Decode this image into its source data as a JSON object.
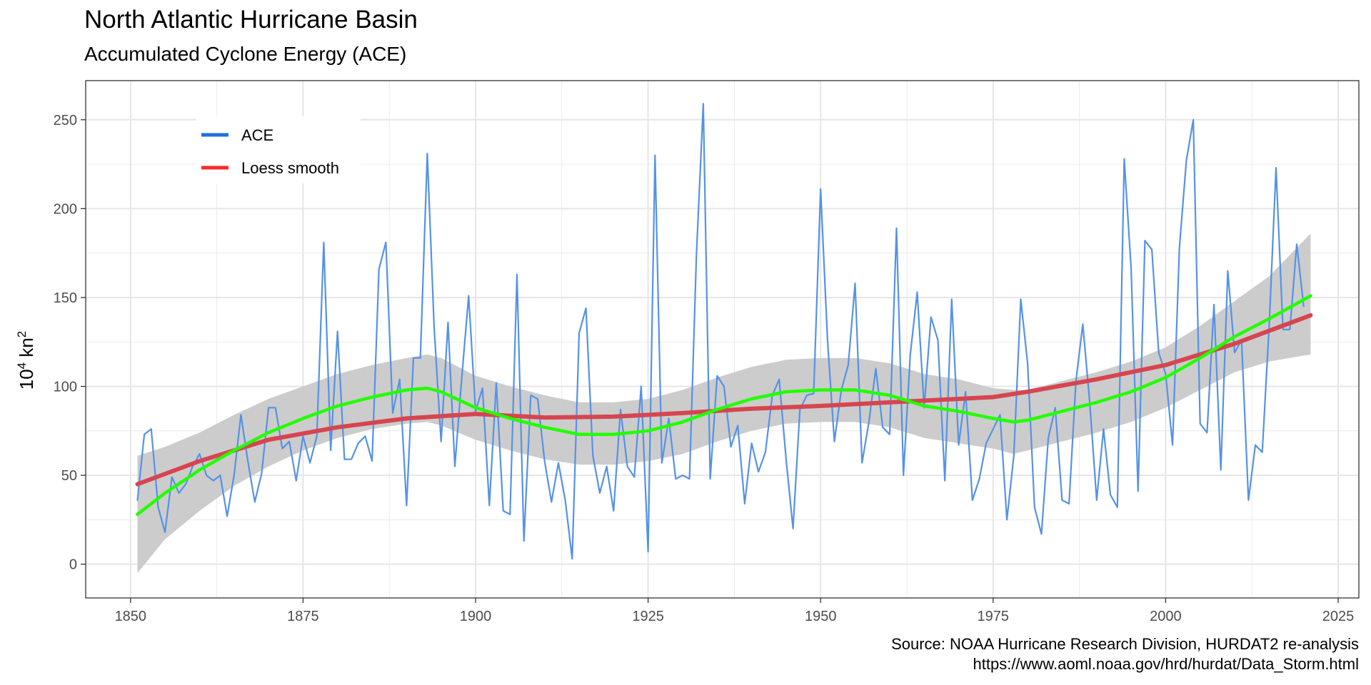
{
  "colors": {
    "ace": "#5592e6",
    "loess": "#d64550",
    "green": "#22ff00",
    "band": "#c9c9c9",
    "grid": "#e6e6e6",
    "legend_ace": "#1f6fe0",
    "legend_loess": "#ff2a2a"
  },
  "chart_data": {
    "type": "line",
    "title": "North Atlantic Hurricane Basin",
    "subtitle": "Accumulated Cyclone Energy (ACE)",
    "ylabel_base": "10",
    "ylabel_sup1": "4",
    "ylabel_unit": " kn",
    "ylabel_sup2": "2",
    "xlabel": "",
    "xlim": [
      1843.5,
      2028
    ],
    "ylim": [
      -19,
      272
    ],
    "xticks": [
      1850,
      1875,
      1900,
      1925,
      1950,
      1975,
      2000,
      2025
    ],
    "yticks": [
      0,
      50,
      100,
      150,
      200,
      250
    ],
    "grid": true,
    "legend": {
      "position": "top-left",
      "entries": [
        {
          "label": "ACE",
          "color": "#1f6fe0"
        },
        {
          "label": "Loess smooth",
          "color": "#ff2a2a"
        }
      ]
    },
    "caption_line1": "Source: NOAA Hurricane Research Division, HURDAT2 re-analysis",
    "caption_line2": "https://www.aoml.noaa.gov/hrd/hurdat/Data_Storm.html",
    "series": [
      {
        "name": "ACE",
        "x_start": 1851,
        "values": [
          36,
          73,
          76,
          32,
          18,
          49,
          40,
          45,
          55,
          62,
          50,
          47,
          50,
          27,
          50,
          84,
          58,
          35,
          51,
          88,
          88,
          65,
          69,
          47,
          72,
          57,
          72,
          181,
          64,
          131,
          59,
          59,
          68,
          72,
          58,
          166,
          181,
          85,
          104,
          33,
          116,
          116,
          231,
          133,
          69,
          136,
          55,
          105,
          151,
          86,
          99,
          33,
          102,
          30,
          28,
          163,
          13,
          95,
          93,
          58,
          35,
          57,
          36,
          3,
          130,
          144,
          61,
          40,
          55,
          30,
          87,
          55,
          49,
          100,
          7,
          230,
          57,
          82,
          48,
          50,
          48,
          174,
          259,
          48,
          106,
          100,
          66,
          78,
          34,
          68,
          52,
          63,
          95,
          104,
          59,
          20,
          87,
          95,
          96,
          211,
          126,
          69,
          98,
          112,
          158,
          57,
          80,
          110,
          77,
          73,
          189,
          50,
          118,
          153,
          88,
          139,
          126,
          47,
          149,
          67,
          97,
          36,
          48,
          68,
          76,
          84,
          25,
          61,
          149,
          113,
          32,
          17,
          71,
          88,
          36,
          34,
          103,
          135,
          91,
          36,
          76,
          39,
          32,
          228,
          166,
          41,
          182,
          177,
          119,
          107,
          67,
          178,
          227,
          250,
          79,
          74,
          146,
          53,
          165,
          119,
          126,
          36,
          67,
          63,
          134,
          223,
          132,
          132,
          180,
          145
        ],
        "color": "#5592e6"
      },
      {
        "name": "Loess smooth",
        "x": [
          1851,
          1860,
          1870,
          1880,
          1890,
          1900,
          1910,
          1920,
          1930,
          1940,
          1950,
          1960,
          1970,
          1975,
          1980,
          1990,
          2000,
          2010,
          2021
        ],
        "values": [
          45,
          58,
          70,
          77,
          82,
          84.5,
          82.5,
          83,
          85,
          87.5,
          89,
          91,
          93,
          94,
          97,
          104,
          112,
          124,
          140
        ],
        "color": "#d64550"
      },
      {
        "x": [
          1851,
          1855,
          1860,
          1865,
          1870,
          1875,
          1880,
          1885,
          1890,
          1893,
          1895,
          1900,
          1905,
          1910,
          1915,
          1920,
          1925,
          1930,
          1935,
          1940,
          1945,
          1950,
          1955,
          1960,
          1965,
          1970,
          1975,
          1978,
          1980,
          1985,
          1990,
          1995,
          2000,
          2005,
          2010,
          2015,
          2021
        ],
        "values": [
          28,
          40,
          53,
          64,
          74,
          82,
          89,
          94,
          98,
          99,
          97,
          88,
          82,
          77,
          73,
          73,
          75,
          80,
          87,
          93,
          97,
          98,
          98,
          95,
          89,
          86,
          82,
          80,
          81,
          86,
          91,
          97,
          105,
          116,
          128,
          138,
          151
        ],
        "color": "#22ff00"
      }
    ],
    "confidence_band": {
      "x": [
        1851,
        1855,
        1860,
        1865,
        1870,
        1875,
        1880,
        1885,
        1890,
        1893,
        1895,
        1900,
        1905,
        1910,
        1915,
        1920,
        1925,
        1930,
        1935,
        1940,
        1945,
        1950,
        1955,
        1960,
        1965,
        1970,
        1975,
        1978,
        1980,
        1985,
        1990,
        1995,
        2000,
        2005,
        2010,
        2015,
        2021
      ],
      "lower": [
        -5,
        14,
        30,
        44,
        55,
        64,
        71,
        76,
        79,
        80,
        78,
        70,
        64,
        59,
        56,
        56,
        58,
        62,
        69,
        75,
        79,
        80,
        80,
        77,
        71,
        68,
        65,
        62,
        64,
        69,
        74,
        80,
        88,
        98,
        108,
        114,
        118
      ],
      "upper": [
        61,
        66,
        74,
        84,
        93,
        100,
        107,
        112,
        116,
        118,
        116,
        106,
        100,
        95,
        91,
        91,
        93,
        98,
        105,
        111,
        115,
        116,
        116,
        113,
        107,
        104,
        99,
        98,
        98,
        103,
        108,
        114,
        122,
        134,
        148,
        162,
        186
      ]
    }
  }
}
